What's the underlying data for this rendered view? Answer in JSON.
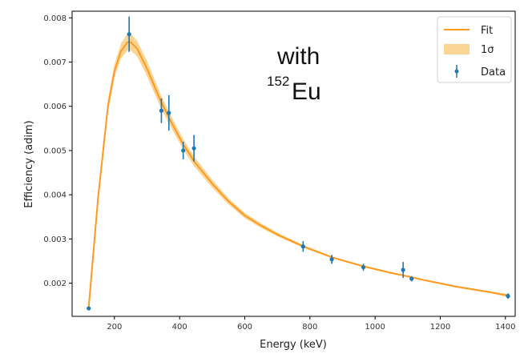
{
  "chart_data": {
    "type": "line",
    "xlabel": "Energy (keV)",
    "ylabel": "Efficiency (adim)",
    "xlim": [
      70,
      1430
    ],
    "ylim": [
      0.00125,
      0.00815
    ],
    "xticks": [
      200,
      400,
      600,
      800,
      1000,
      1200,
      1400
    ],
    "yticks": [
      0.002,
      0.003,
      0.004,
      0.005,
      0.006,
      0.007,
      0.008
    ],
    "xtick_labels": [
      "200",
      "400",
      "600",
      "800",
      "1000",
      "1200",
      "1400"
    ],
    "ytick_labels": [
      "0.002",
      "0.003",
      "0.004",
      "0.005",
      "0.006",
      "0.007",
      "0.008"
    ],
    "grid": false,
    "legend_position": "top-right",
    "annotation": {
      "text": "with",
      "isotope_mass": "152",
      "isotope_symbol": "Eu"
    },
    "series": [
      {
        "name": "Fit",
        "type": "line",
        "color": "#ff9a1f",
        "x": [
          121,
          150,
          180,
          200,
          220,
          240,
          250,
          270,
          300,
          340,
          370,
          410,
          445,
          500,
          550,
          600,
          650,
          700,
          780,
          870,
          960,
          1050,
          1090,
          1150,
          1250,
          1350,
          1408
        ],
        "y": [
          0.00145,
          0.00395,
          0.006,
          0.0068,
          0.00725,
          0.00745,
          0.00745,
          0.0073,
          0.00685,
          0.00615,
          0.0057,
          0.00515,
          0.00475,
          0.00425,
          0.00385,
          0.00353,
          0.0033,
          0.0031,
          0.00283,
          0.00258,
          0.00239,
          0.00223,
          0.00217,
          0.00207,
          0.00192,
          0.0018,
          0.00172
        ]
      },
      {
        "name": "1σ",
        "type": "band",
        "color": "#fbd596",
        "x": [
          121,
          150,
          180,
          200,
          220,
          240,
          250,
          270,
          300,
          340,
          370,
          410,
          445,
          500,
          550,
          600,
          650,
          700,
          780,
          870,
          960,
          1050,
          1090,
          1150,
          1250,
          1350,
          1408
        ],
        "lower": [
          0.0014,
          0.00385,
          0.00585,
          0.00665,
          0.00708,
          0.00726,
          0.00726,
          0.00712,
          0.00668,
          0.006,
          0.00557,
          0.00503,
          0.00464,
          0.00416,
          0.00378,
          0.00347,
          0.00325,
          0.00306,
          0.0028,
          0.00256,
          0.00237,
          0.00221,
          0.00215,
          0.00205,
          0.0019,
          0.00178,
          0.00169
        ],
        "upper": [
          0.0015,
          0.00405,
          0.00615,
          0.00695,
          0.00742,
          0.00764,
          0.00764,
          0.00748,
          0.00702,
          0.0063,
          0.00583,
          0.00527,
          0.00486,
          0.00434,
          0.00392,
          0.00359,
          0.00335,
          0.00314,
          0.00286,
          0.0026,
          0.00241,
          0.00225,
          0.00219,
          0.00209,
          0.00194,
          0.00182,
          0.00175
        ]
      },
      {
        "name": "Data",
        "type": "errorbar",
        "color": "#1f77b4",
        "x": [
          121,
          245,
          344,
          367,
          411,
          444,
          779,
          867,
          964,
          1086,
          1112,
          1408
        ],
        "y": [
          0.00143,
          0.00763,
          0.0059,
          0.00585,
          0.005,
          0.00505,
          0.00283,
          0.00254,
          0.00236,
          0.0023,
          0.0021,
          0.00171
        ],
        "yerr": [
          3e-05,
          0.0004,
          0.00028,
          0.0004,
          0.0002,
          0.0003,
          0.00012,
          0.0001,
          8e-05,
          0.00018,
          6e-05,
          6e-05
        ]
      }
    ]
  }
}
